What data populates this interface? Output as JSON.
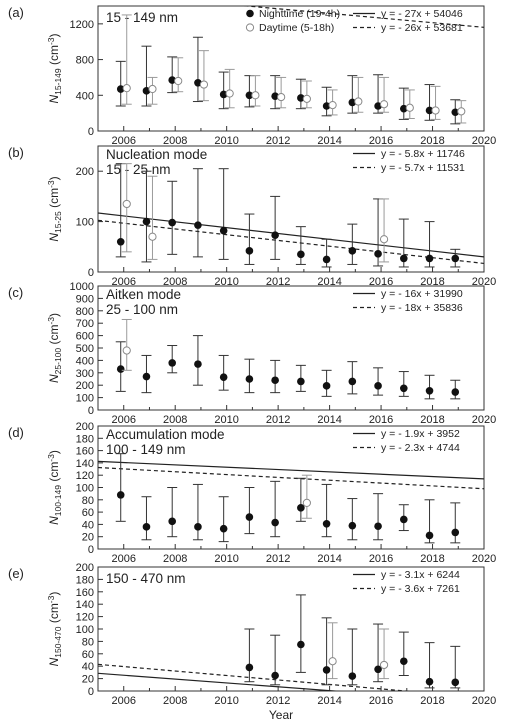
{
  "xlabel": "Year",
  "x_ticks": [
    2006,
    2008,
    2010,
    2012,
    2014,
    2016,
    2018,
    2020
  ],
  "xlim": [
    2005,
    2020
  ],
  "chart_data": [
    {
      "panel": "(a)",
      "type": "scatter",
      "title": "15 - 149 nm",
      "ylabel": "N15-149 (cm-3)",
      "ylabel_main": "N",
      "ylabel_sub": "15-149",
      "ylabel_unit": " (cm",
      "ylabel_sup": "-3",
      "ylabel_close": ")",
      "ylim": [
        0,
        1400
      ],
      "yticks": [
        0,
        400,
        800,
        1200
      ],
      "legend_series": [
        "Nighttime (19-4h)",
        "Daytime (5-18h)"
      ],
      "series": [
        {
          "name": "Nighttime (19-4h)",
          "marker": "filled",
          "x": [
            2006,
            2007,
            2008,
            2009,
            2010,
            2011,
            2012,
            2013,
            2014,
            2015,
            2016,
            2017,
            2018,
            2019
          ],
          "y": [
            470,
            450,
            570,
            540,
            410,
            400,
            390,
            370,
            280,
            320,
            280,
            250,
            230,
            210
          ],
          "err_low": [
            280,
            280,
            430,
            330,
            250,
            270,
            250,
            250,
            170,
            200,
            200,
            130,
            120,
            80
          ],
          "err_high": [
            780,
            950,
            830,
            1050,
            660,
            620,
            620,
            580,
            490,
            620,
            630,
            480,
            520,
            350
          ]
        },
        {
          "name": "Daytime (5-18h)",
          "marker": "open",
          "x": [
            2006,
            2007,
            2008,
            2009,
            2010,
            2011,
            2012,
            2013,
            2014,
            2015,
            2016,
            2017,
            2018,
            2019
          ],
          "y": [
            480,
            470,
            560,
            520,
            420,
            400,
            380,
            360,
            290,
            330,
            300,
            260,
            230,
            220
          ],
          "err_low": [
            300,
            300,
            440,
            340,
            260,
            280,
            260,
            260,
            180,
            210,
            210,
            140,
            130,
            90
          ],
          "err_high": [
            1300,
            600,
            820,
            900,
            690,
            620,
            600,
            560,
            460,
            600,
            600,
            460,
            500,
            340
          ]
        }
      ],
      "fits": [
        {
          "label": "y = - 27x + 54046",
          "style": "solid",
          "slope": -27,
          "intercept": 54046
        },
        {
          "label": "y = - 26x + 53681",
          "style": "dashed",
          "slope": -26,
          "intercept": 53681
        }
      ]
    },
    {
      "panel": "(b)",
      "type": "scatter",
      "title": "Nucleation mode",
      "title2": "15 - 25 nm",
      "ylabel": "N15-25 (cm-3)",
      "ylabel_main": "N",
      "ylabel_sub": "15-25",
      "ylabel_unit": " (cm",
      "ylabel_sup": "-3",
      "ylabel_close": ")",
      "ylim": [
        0,
        250
      ],
      "yticks": [
        0,
        100,
        200
      ],
      "series": [
        {
          "name": "Nighttime (19-4h)",
          "marker": "filled",
          "x": [
            2006,
            2007,
            2008,
            2009,
            2010,
            2011,
            2012,
            2013,
            2014,
            2015,
            2016,
            2017,
            2018,
            2019
          ],
          "y": [
            60,
            100,
            98,
            93,
            82,
            42,
            73,
            35,
            25,
            42,
            36,
            27,
            27,
            27
          ],
          "err_low": [
            30,
            20,
            35,
            30,
            25,
            15,
            25,
            15,
            10,
            15,
            12,
            10,
            10,
            10
          ],
          "err_high": [
            215,
            200,
            180,
            205,
            205,
            115,
            150,
            90,
            65,
            95,
            145,
            105,
            100,
            45
          ]
        },
        {
          "name": "Daytime (5-18h)",
          "marker": "open",
          "x": [
            2006,
            2007,
            2016
          ],
          "y": [
            135,
            70,
            65
          ],
          "err_low": [
            40,
            25,
            20
          ],
          "err_high": [
            215,
            190,
            145
          ]
        }
      ],
      "fits": [
        {
          "label": "y = - 5.8x + 11746",
          "style": "solid",
          "slope": -5.8,
          "intercept": 11746
        },
        {
          "label": "y = - 5.7x + 11531",
          "style": "dashed",
          "slope": -5.7,
          "intercept": 11531
        }
      ]
    },
    {
      "panel": "(c)",
      "type": "scatter",
      "title": "Aitken mode",
      "title2": "25 - 100 nm",
      "ylabel": "N25-100 (cm-3)",
      "ylabel_main": "N",
      "ylabel_sub": "25-100",
      "ylabel_unit": " (cm",
      "ylabel_sup": "-3",
      "ylabel_close": ")",
      "ylim": [
        0,
        1000
      ],
      "yticks": [
        0,
        100,
        200,
        300,
        400,
        500,
        600,
        700,
        800,
        900,
        1000
      ],
      "series": [
        {
          "name": "Nighttime (19-4h)",
          "marker": "filled",
          "x": [
            2006,
            2007,
            2008,
            2009,
            2010,
            2011,
            2012,
            2013,
            2014,
            2015,
            2016,
            2017,
            2018,
            2019
          ],
          "y": [
            330,
            270,
            380,
            370,
            265,
            250,
            240,
            230,
            195,
            230,
            195,
            175,
            155,
            145
          ],
          "err_low": [
            150,
            140,
            300,
            200,
            160,
            140,
            140,
            150,
            110,
            130,
            120,
            110,
            90,
            90
          ],
          "err_high": [
            550,
            440,
            520,
            600,
            440,
            410,
            400,
            360,
            320,
            390,
            340,
            310,
            280,
            240
          ]
        },
        {
          "name": "Daytime (5-18h)",
          "marker": "open",
          "x": [
            2006
          ],
          "y": [
            480
          ],
          "err_low": [
            320
          ],
          "err_high": [
            730
          ]
        }
      ],
      "fits": [
        {
          "label": "y = - 16x + 31990",
          "style": "solid",
          "slope": -16,
          "intercept": 31990
        },
        {
          "label": "y = - 18x + 35836",
          "style": "dashed",
          "slope": -18,
          "intercept": 35836
        }
      ]
    },
    {
      "panel": "(d)",
      "type": "scatter",
      "title": "Accumulation mode",
      "title2": "100 - 149 nm",
      "ylabel": "N100-149 (cm-3)",
      "ylabel_main": "N",
      "ylabel_sub": "100-149",
      "ylabel_unit": " (cm",
      "ylabel_sup": "-3",
      "ylabel_close": ")",
      "ylim": [
        0,
        200
      ],
      "yticks": [
        0,
        20,
        40,
        60,
        80,
        100,
        120,
        140,
        160,
        180,
        200
      ],
      "series": [
        {
          "name": "Nighttime (19-4h)",
          "marker": "filled",
          "x": [
            2006,
            2007,
            2008,
            2009,
            2010,
            2011,
            2012,
            2013,
            2014,
            2015,
            2016,
            2017,
            2018,
            2019
          ],
          "y": [
            88,
            36,
            45,
            36,
            33,
            52,
            43,
            67,
            41,
            38,
            37,
            48,
            22,
            27
          ],
          "err_low": [
            45,
            15,
            20,
            15,
            12,
            25,
            20,
            45,
            20,
            15,
            15,
            30,
            10,
            10
          ],
          "err_high": [
            155,
            85,
            100,
            105,
            85,
            100,
            110,
            115,
            105,
            82,
            90,
            72,
            80,
            75
          ]
        },
        {
          "name": "Daytime (5-18h)",
          "marker": "open",
          "x": [
            2013
          ],
          "y": [
            75
          ],
          "err_low": [
            50
          ],
          "err_high": [
            120
          ]
        }
      ],
      "fits": [
        {
          "label": "y = - 1.9x + 3952",
          "style": "solid",
          "slope": -1.9,
          "intercept": 3952
        },
        {
          "label": "y = - 2.3x + 4744",
          "style": "dashed",
          "slope": -2.3,
          "intercept": 4744
        }
      ]
    },
    {
      "panel": "(e)",
      "type": "scatter",
      "title": "150 - 470 nm",
      "ylabel": "N150-470 (cm-3)",
      "ylabel_main": "N",
      "ylabel_sub": "150-470",
      "ylabel_unit": " (cm",
      "ylabel_sup": "-3",
      "ylabel_close": ")",
      "ylim": [
        0,
        200
      ],
      "yticks": [
        0,
        20,
        40,
        60,
        80,
        100,
        120,
        140,
        160,
        180,
        200
      ],
      "series": [
        {
          "name": "Nighttime (19-4h)",
          "marker": "filled",
          "x": [
            2011,
            2012,
            2013,
            2014,
            2015,
            2016,
            2017,
            2018,
            2019
          ],
          "y": [
            38,
            25,
            75,
            34,
            24,
            35,
            48,
            15,
            14
          ],
          "err_low": [
            15,
            10,
            30,
            10,
            10,
            15,
            25,
            5,
            5
          ],
          "err_high": [
            100,
            90,
            155,
            118,
            100,
            108,
            95,
            78,
            72
          ]
        },
        {
          "name": "Daytime (5-18h)",
          "marker": "open",
          "x": [
            2014,
            2016
          ],
          "y": [
            48,
            42
          ],
          "err_low": [
            20,
            20
          ],
          "err_high": [
            110,
            100
          ]
        }
      ],
      "fits": [
        {
          "label": "y = - 3.1x + 6244",
          "style": "solid",
          "slope": -3.1,
          "intercept": 6244
        },
        {
          "label": "y = - 3.6x + 7261",
          "style": "dashed",
          "slope": -3.6,
          "intercept": 7261
        }
      ]
    }
  ]
}
